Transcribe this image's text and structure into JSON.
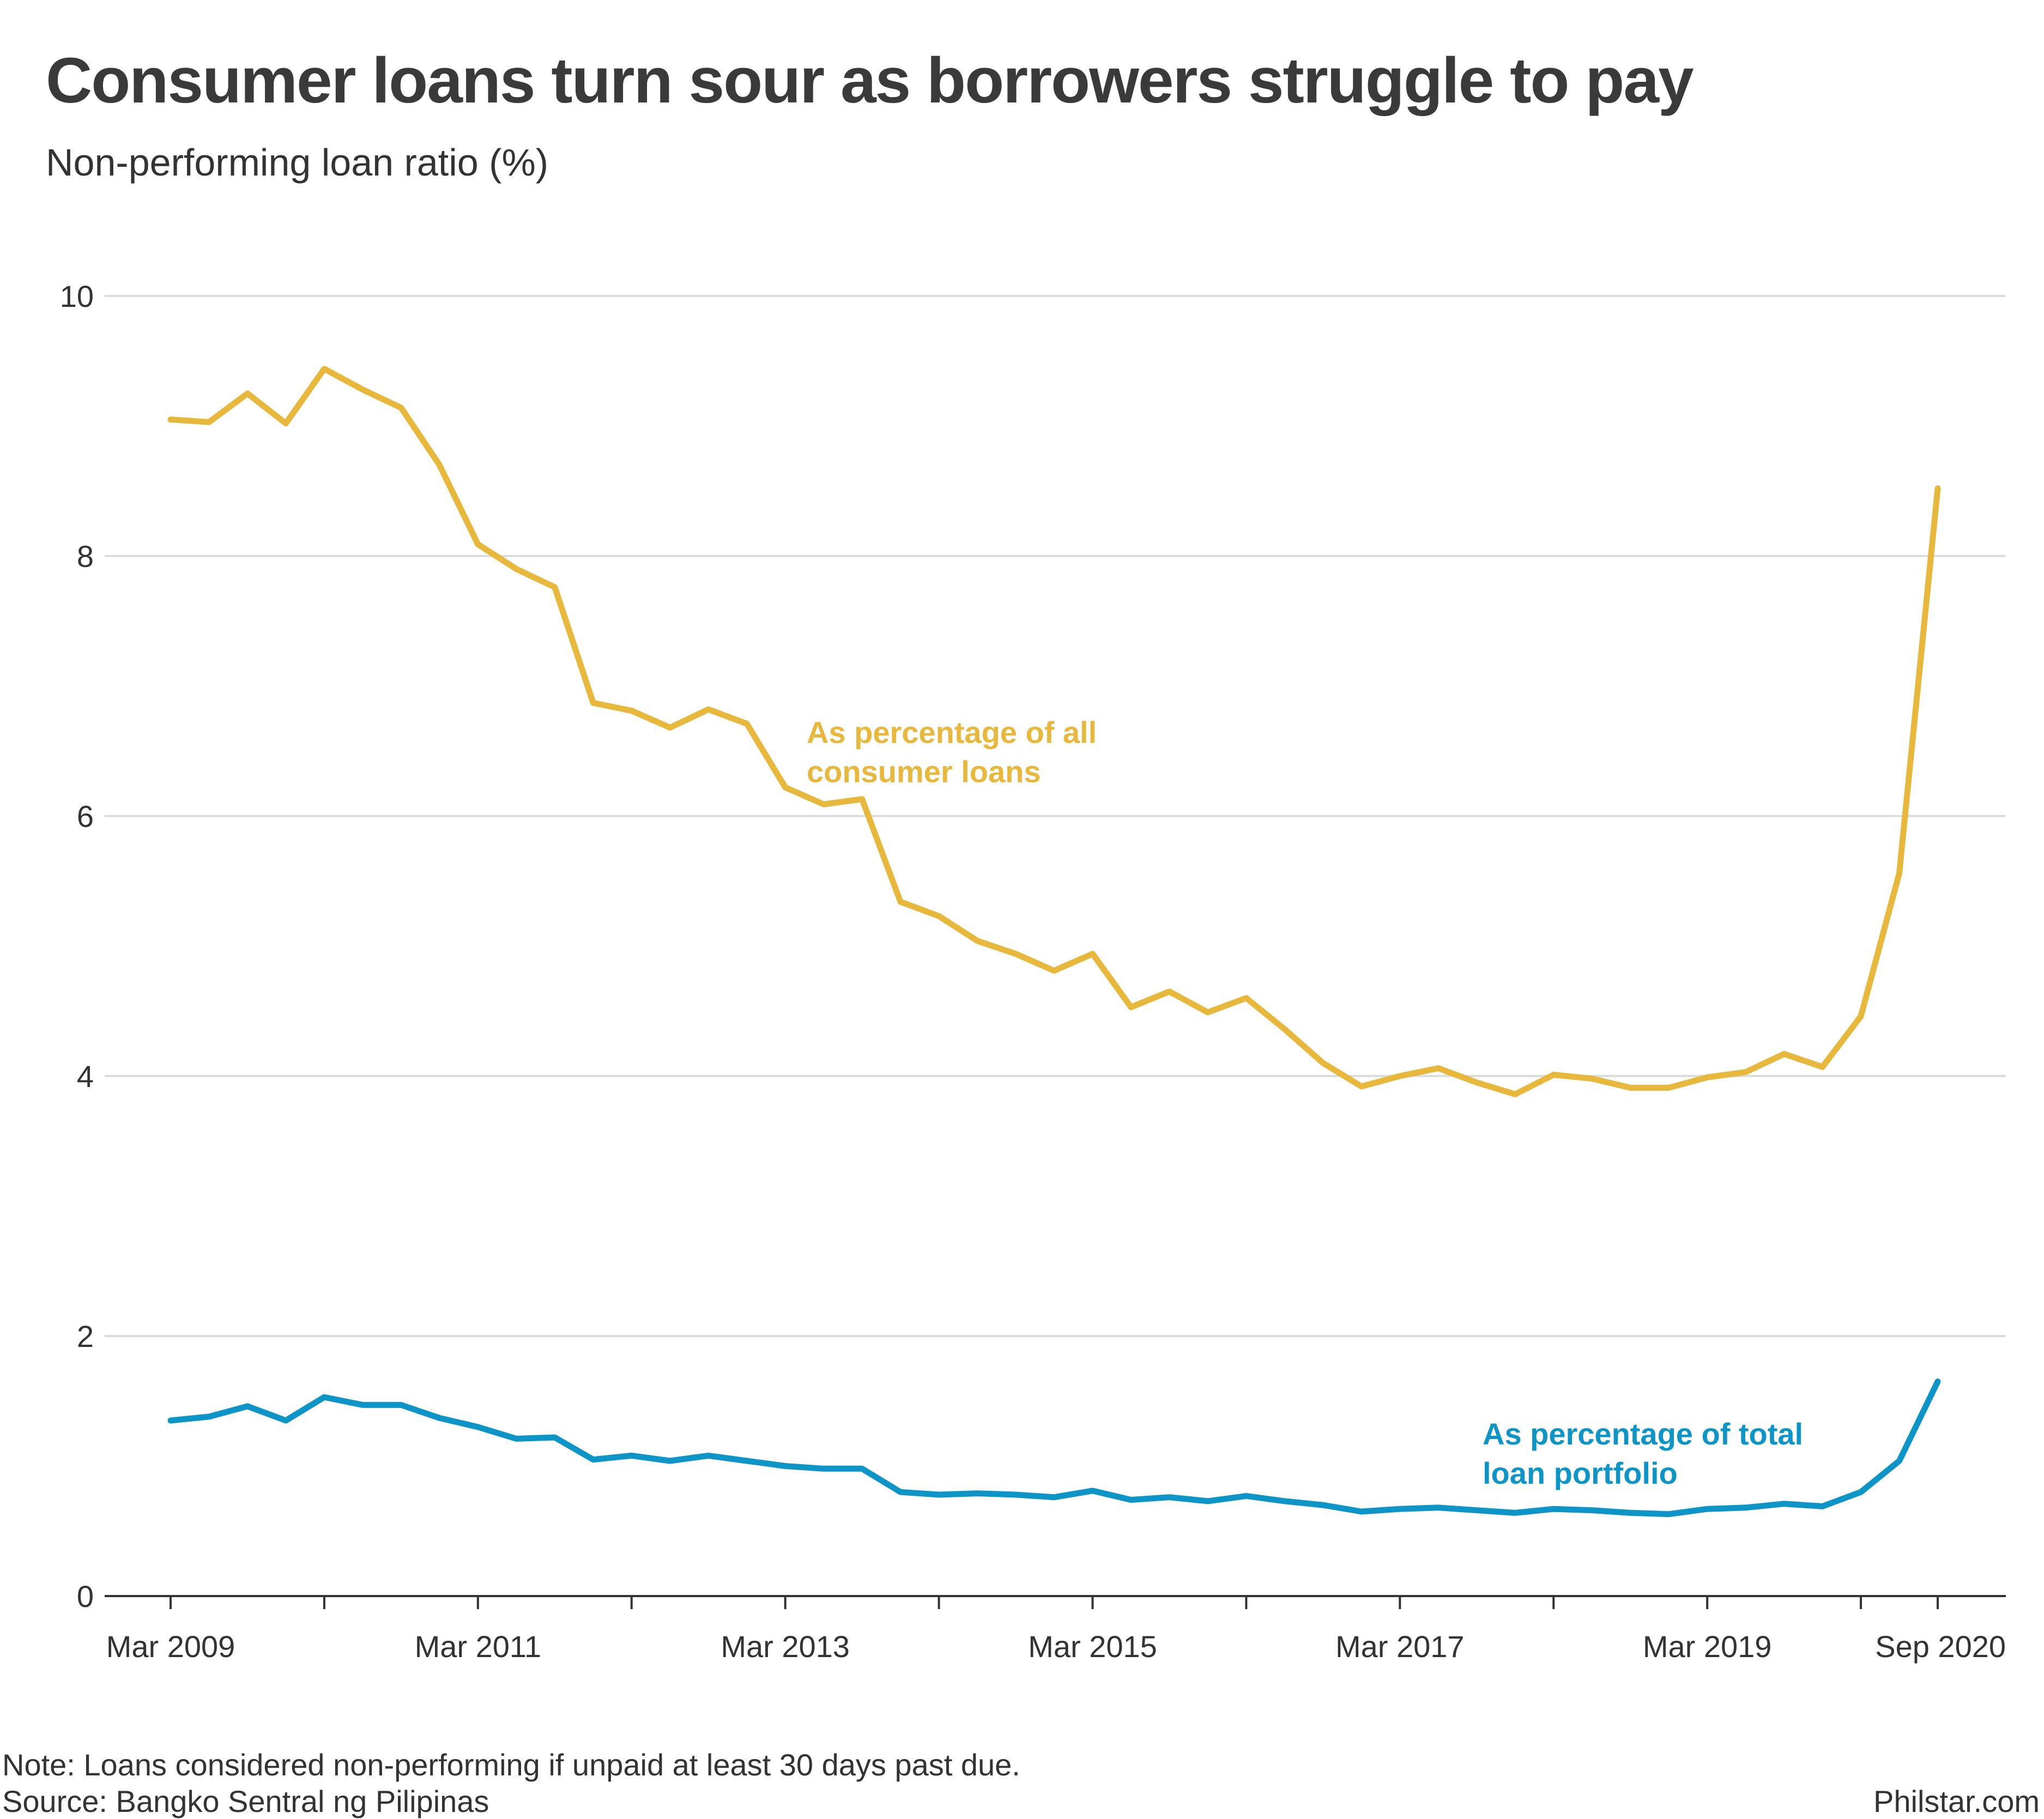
{
  "title": "Consumer loans turn sour as borrowers struggle to pay",
  "subtitle": "Non-performing loan ratio (%)",
  "note": "Note: Loans considered non-performing if unpaid at least 30 days past due.",
  "source": "Source: Bangko Sentral ng Pilipinas",
  "credit": "Philstar.com",
  "chart_data": {
    "type": "line",
    "x_start": "Mar 2009",
    "x_end": "Sep 2020",
    "ylim": [
      0,
      10
    ],
    "yticks": [
      0,
      2,
      4,
      6,
      8,
      10
    ],
    "grid": true,
    "x_tick_labels": [
      {
        "label": "Mar 2009",
        "index": 0
      },
      {
        "label": "Mar 2011",
        "index": 8
      },
      {
        "label": "Mar 2013",
        "index": 16
      },
      {
        "label": "Mar 2015",
        "index": 24
      },
      {
        "label": "Mar 2017",
        "index": 32
      },
      {
        "label": "Mar 2019",
        "index": 40
      },
      {
        "label": "Sep 2020",
        "index": 46
      }
    ],
    "x_ticks_every": 4,
    "x": [
      "Mar 2009",
      "Jun 2009",
      "Sep 2009",
      "Dec 2009",
      "Mar 2010",
      "Jun 2010",
      "Sep 2010",
      "Dec 2010",
      "Mar 2011",
      "Jun 2011",
      "Sep 2011",
      "Dec 2011",
      "Mar 2012",
      "Jun 2012",
      "Sep 2012",
      "Dec 2012",
      "Mar 2013",
      "Jun 2013",
      "Sep 2013",
      "Dec 2013",
      "Mar 2014",
      "Jun 2014",
      "Sep 2014",
      "Dec 2014",
      "Mar 2015",
      "Jun 2015",
      "Sep 2015",
      "Dec 2015",
      "Mar 2016",
      "Jun 2016",
      "Sep 2016",
      "Dec 2016",
      "Mar 2017",
      "Jun 2017",
      "Sep 2017",
      "Dec 2017",
      "Mar 2018",
      "Jun 2018",
      "Sep 2018",
      "Dec 2018",
      "Mar 2019",
      "Jun 2019",
      "Sep 2019",
      "Dec 2019",
      "Mar 2020",
      "Jun 2020",
      "Sep 2020"
    ],
    "series": [
      {
        "name": "As percentage of all consumer loans",
        "label_lines": [
          "As percentage of all",
          "consumer loans"
        ],
        "color": "#E8B83C",
        "values": [
          9.05,
          9.03,
          9.25,
          9.02,
          9.44,
          9.28,
          9.14,
          8.7,
          8.09,
          7.9,
          7.76,
          6.87,
          6.81,
          6.68,
          6.82,
          6.71,
          6.22,
          6.09,
          6.13,
          5.34,
          5.23,
          5.04,
          4.94,
          4.81,
          4.94,
          4.53,
          4.65,
          4.49,
          4.6,
          4.36,
          4.1,
          3.92,
          4.0,
          4.06,
          3.95,
          3.86,
          4.01,
          3.98,
          3.91,
          3.91,
          3.99,
          4.03,
          4.17,
          4.07,
          4.46,
          5.56,
          8.52
        ]
      },
      {
        "name": "As percentage of total loan portfolio",
        "label_lines": [
          "As percentage of total",
          "loan portfolio"
        ],
        "color": "#0E95C8",
        "values": [
          1.35,
          1.38,
          1.46,
          1.35,
          1.53,
          1.47,
          1.47,
          1.37,
          1.3,
          1.21,
          1.22,
          1.05,
          1.08,
          1.04,
          1.08,
          1.04,
          1.0,
          0.98,
          0.98,
          0.8,
          0.78,
          0.79,
          0.78,
          0.76,
          0.81,
          0.74,
          0.76,
          0.73,
          0.77,
          0.73,
          0.7,
          0.65,
          0.67,
          0.68,
          0.66,
          0.64,
          0.67,
          0.66,
          0.64,
          0.63,
          0.67,
          0.68,
          0.71,
          0.69,
          0.8,
          1.04,
          1.65
        ]
      }
    ]
  }
}
